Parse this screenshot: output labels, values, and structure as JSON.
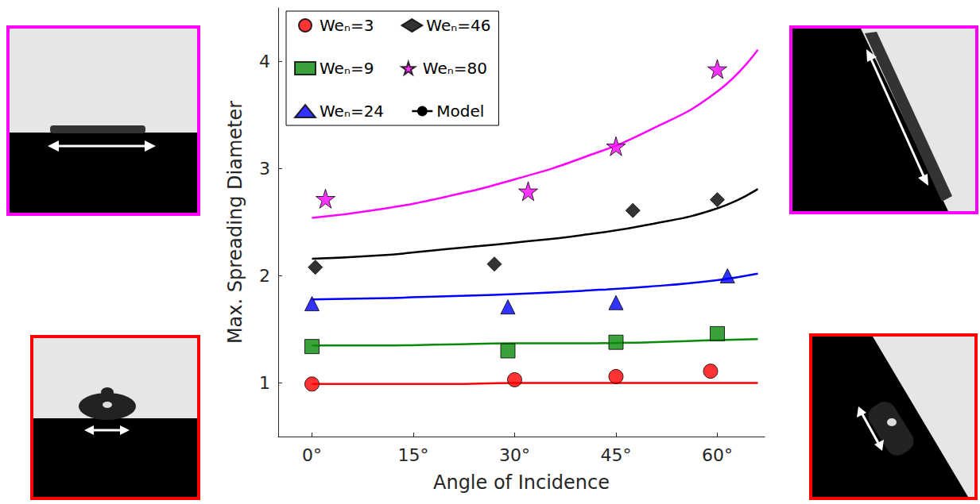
{
  "chart_data": {
    "type": "scatter",
    "x_label": "Angle of Incidence",
    "y_label": "Max. Spreading Diameter",
    "xlim": [
      -5,
      67
    ],
    "xticks": [
      {
        "value": 0,
        "label": "0°"
      },
      {
        "value": 15,
        "label": "15°"
      },
      {
        "value": 30,
        "label": "30°"
      },
      {
        "value": 45,
        "label": "45°"
      },
      {
        "value": 60,
        "label": "60°"
      }
    ],
    "ylim": [
      0.5,
      4.5
    ],
    "yticks": [
      1,
      2,
      3,
      4
    ],
    "grid": false,
    "legend": "upper left",
    "series": [
      {
        "name": "Weₙ=3",
        "color": "#ff0000",
        "marker": "circle",
        "x": [
          0,
          30,
          45,
          59
        ],
        "values": [
          0.99,
          1.03,
          1.06,
          1.11
        ],
        "model_values": [
          0.99,
          0.99,
          0.99,
          1.0,
          1.0,
          1.0,
          1.0,
          1.0
        ]
      },
      {
        "name": "Weₙ=9",
        "color": "#0a8a0a",
        "marker": "square",
        "x": [
          0,
          29,
          45,
          60
        ],
        "values": [
          1.34,
          1.3,
          1.38,
          1.46
        ],
        "model_values": [
          1.35,
          1.35,
          1.36,
          1.37,
          1.37,
          1.38,
          1.4,
          1.41
        ]
      },
      {
        "name": "Weₙ=24",
        "color": "#0000ff",
        "marker": "triangle",
        "x": [
          0,
          29,
          45,
          61.5
        ],
        "values": [
          1.74,
          1.71,
          1.75,
          2.0
        ],
        "model_values": [
          1.78,
          1.79,
          1.81,
          1.83,
          1.86,
          1.9,
          1.96,
          2.02
        ]
      },
      {
        "name": "Weₙ=46",
        "color": "#000000",
        "marker": "diamond",
        "x": [
          0.5,
          27,
          47.5,
          60
        ],
        "values": [
          2.08,
          2.11,
          2.61,
          2.71
        ],
        "model_values": [
          2.16,
          2.19,
          2.25,
          2.31,
          2.38,
          2.48,
          2.63,
          2.81
        ]
      },
      {
        "name": "Weₙ=80",
        "color": "#ff00ff",
        "marker": "star",
        "x": [
          2,
          32,
          45,
          60
        ],
        "values": [
          2.72,
          2.79,
          3.21,
          3.93
        ],
        "model_values": [
          2.54,
          2.62,
          2.74,
          2.9,
          3.1,
          3.36,
          3.72,
          4.11
        ]
      }
    ],
    "model": {
      "name": "Model",
      "color": "#000000",
      "type": "line",
      "line_style": "solid",
      "x": [
        0,
        10,
        20,
        30,
        40,
        50,
        60,
        66
      ]
    }
  }
}
